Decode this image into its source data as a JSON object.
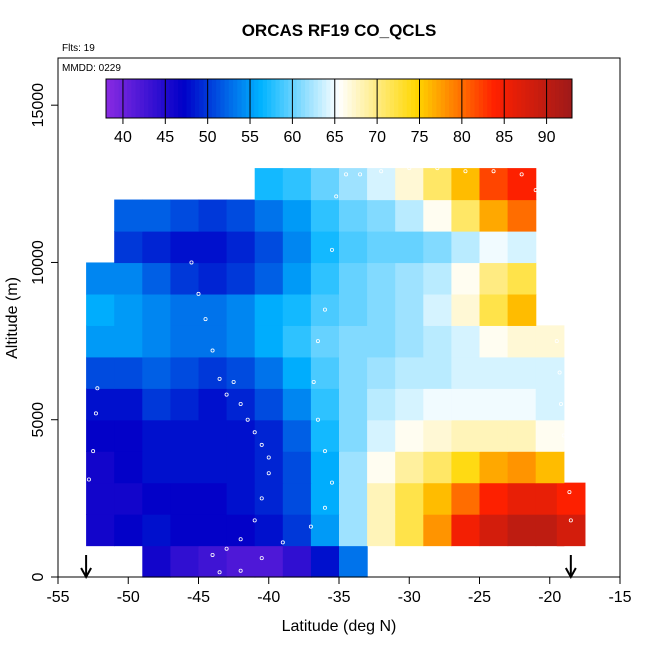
{
  "chart_data": {
    "type": "heatmap",
    "title": "ORCAS RF19 CO_QCLS",
    "corner_labels": {
      "flights": "Flts: 19",
      "mmdd": "MMDD: 0229"
    },
    "xlabel": "Latitude (deg N)",
    "ylabel": "Altitude (m)",
    "xlim": [
      -55,
      -15
    ],
    "ylim": [
      0,
      16500
    ],
    "x_ticks": [
      -55,
      -50,
      -45,
      -40,
      -35,
      -30,
      -25,
      -20,
      -15
    ],
    "y_ticks": [
      0,
      5000,
      10000,
      15000
    ],
    "colorbar": {
      "range": [
        38,
        93
      ],
      "ticks": [
        40,
        45,
        50,
        55,
        60,
        65,
        70,
        75,
        80,
        85,
        90
      ],
      "colors": [
        "#8a2be2",
        "#0000c8",
        "#00b4ff",
        "#ffffff",
        "#ffd700",
        "#ff2000",
        "#9e1a1a"
      ]
    },
    "arrows_lat": [
      -53,
      -18.5
    ],
    "field": {
      "lat": [
        -52,
        -50,
        -48,
        -46,
        -44,
        -42,
        -40,
        -38,
        -36,
        -34,
        -32,
        -30,
        -28,
        -26,
        -24,
        -22,
        -20,
        -18.5
      ],
      "alt": [
        500,
        1500,
        2500,
        3500,
        4500,
        5500,
        6500,
        7500,
        8500,
        9500,
        10500,
        11500,
        12500
      ],
      "co": [
        [
          null,
          null,
          46,
          44,
          43,
          42,
          42,
          44,
          48,
          53,
          null,
          null,
          null,
          null,
          null,
          null,
          null,
          null
        ],
        [
          46,
          47,
          48,
          47,
          47,
          47,
          48,
          50,
          55,
          62,
          68,
          72,
          78,
          85,
          88,
          90,
          90,
          88
        ],
        [
          46,
          46,
          47,
          47,
          47,
          48,
          49,
          51,
          56,
          62,
          68,
          72,
          76,
          80,
          84,
          86,
          86,
          84
        ],
        [
          46,
          47,
          48,
          48,
          48,
          48,
          49,
          51,
          56,
          62,
          66,
          69,
          71,
          74,
          77,
          78,
          76,
          null
        ],
        [
          47,
          47,
          48,
          48,
          48,
          48,
          49,
          52,
          57,
          61,
          64,
          66,
          67,
          68,
          68,
          68,
          66,
          null
        ],
        [
          48,
          48,
          50,
          49,
          48,
          49,
          51,
          54,
          58,
          61,
          63,
          64,
          65,
          65,
          65,
          65,
          64,
          null
        ],
        [
          51,
          51,
          52,
          51,
          50,
          51,
          53,
          56,
          59,
          61,
          62,
          63,
          63,
          64,
          64,
          64,
          64,
          null
        ],
        [
          55,
          55,
          54,
          53,
          53,
          54,
          56,
          58,
          60,
          61,
          61,
          62,
          63,
          64,
          66,
          67,
          67,
          null
        ],
        [
          56,
          55,
          54,
          53,
          53,
          54,
          56,
          57,
          59,
          60,
          61,
          62,
          64,
          67,
          72,
          76,
          null,
          null
        ],
        [
          54,
          54,
          52,
          50,
          49,
          50,
          52,
          55,
          58,
          60,
          61,
          62,
          63,
          66,
          70,
          72,
          null,
          null
        ],
        [
          null,
          50,
          49,
          48,
          48,
          49,
          51,
          54,
          57,
          59,
          60,
          60,
          61,
          63,
          65,
          64,
          null,
          null
        ],
        [
          null,
          52,
          52,
          51,
          50,
          51,
          53,
          55,
          58,
          60,
          61,
          63,
          66,
          71,
          77,
          80,
          null,
          null
        ],
        [
          null,
          null,
          null,
          null,
          null,
          null,
          57,
          58,
          60,
          62,
          64,
          67,
          71,
          76,
          82,
          84,
          null,
          null
        ]
      ]
    },
    "flight_track": [
      [
        -52.8,
        3100
      ],
      [
        -52.5,
        4000
      ],
      [
        -52.3,
        5200
      ],
      [
        -52.2,
        6000
      ],
      [
        -51.5,
        11900
      ],
      [
        -50.5,
        12300
      ],
      [
        -49.0,
        12500
      ],
      [
        -47.0,
        12550
      ],
      [
        -45.5,
        10000
      ],
      [
        -45.0,
        9000
      ],
      [
        -44.5,
        8200
      ],
      [
        -44.0,
        7200
      ],
      [
        -43.5,
        6300
      ],
      [
        -43.0,
        5800
      ],
      [
        -42.5,
        6200
      ],
      [
        -42.0,
        5500
      ],
      [
        -41.5,
        5000
      ],
      [
        -41.0,
        4600
      ],
      [
        -40.5,
        4200
      ],
      [
        -40.0,
        3800
      ],
      [
        -40.0,
        3300
      ],
      [
        -40.5,
        2500
      ],
      [
        -41.0,
        1800
      ],
      [
        -42.0,
        1200
      ],
      [
        -43.0,
        900
      ],
      [
        -44.0,
        700
      ],
      [
        -43.5,
        150
      ],
      [
        -42.0,
        200
      ],
      [
        -40.5,
        600
      ],
      [
        -39.0,
        1100
      ],
      [
        -37.0,
        1600
      ],
      [
        -36.0,
        2200
      ],
      [
        -35.5,
        3000
      ],
      [
        -36.0,
        4000
      ],
      [
        -36.5,
        5000
      ],
      [
        -36.8,
        6200
      ],
      [
        -36.5,
        7500
      ],
      [
        -36.0,
        8500
      ],
      [
        -35.5,
        10400
      ],
      [
        -35.2,
        12100
      ],
      [
        -34.5,
        12800
      ],
      [
        -33.5,
        12800
      ],
      [
        -32.0,
        12900
      ],
      [
        -30.0,
        13000
      ],
      [
        -28.0,
        13000
      ],
      [
        -26.0,
        12900
      ],
      [
        -24.0,
        12900
      ],
      [
        -22.0,
        12800
      ],
      [
        -21.0,
        12300
      ],
      [
        -20.2,
        11200
      ],
      [
        -19.8,
        9700
      ],
      [
        -19.6,
        8800
      ],
      [
        -19.5,
        7500
      ],
      [
        -19.3,
        6500
      ],
      [
        -19.2,
        5500
      ],
      [
        -19.0,
        4500
      ],
      [
        -18.8,
        3600
      ],
      [
        -18.6,
        2700
      ],
      [
        -18.5,
        1800
      ],
      [
        -18.4,
        800
      ]
    ]
  }
}
